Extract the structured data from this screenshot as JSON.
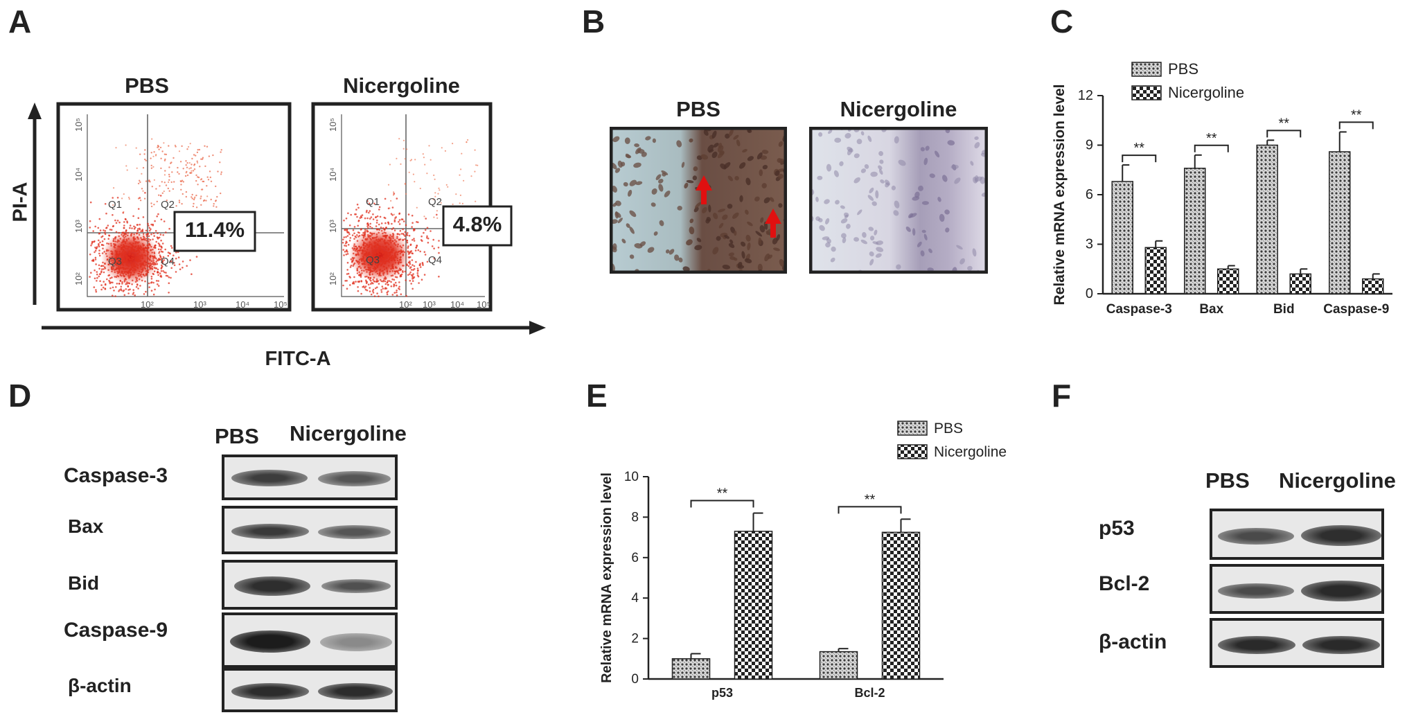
{
  "panels": {
    "A": {
      "letter": "A",
      "y_axis_label": "PI-A",
      "x_axis_label": "FITC-A",
      "plots": [
        {
          "title": "PBS",
          "percent": "11.4%",
          "quadrants": [
            "Q1",
            "Q2",
            "Q3",
            "Q4"
          ],
          "decades": [
            "10²",
            "10³",
            "10⁴",
            "10⁵"
          ]
        },
        {
          "title": "Nicergoline",
          "percent": "4.8%",
          "quadrants": [
            "Q1",
            "Q2",
            "Q3",
            "Q4"
          ],
          "decades": [
            "10²",
            "10³",
            "10⁴",
            "10⁵"
          ]
        }
      ]
    },
    "B": {
      "letter": "B",
      "images": [
        {
          "title": "PBS"
        },
        {
          "title": "Nicergoline"
        }
      ]
    },
    "D": {
      "letter": "D",
      "col_headers": [
        "PBS",
        "Nicergoline"
      ],
      "rows": [
        "Caspase-3",
        "Bax",
        "Bid",
        "Caspase-9",
        "β-actin"
      ]
    },
    "F": {
      "letter": "F",
      "col_headers": [
        "PBS",
        "Nicergoline"
      ],
      "rows": [
        "p53",
        "Bcl-2",
        "β-actin"
      ]
    }
  },
  "chart_data": [
    {
      "panel": "C",
      "type": "bar",
      "letter": "C",
      "ylabel": "Relative mRNA expression level",
      "xlabel": "",
      "ylim": [
        0,
        12
      ],
      "yticks": [
        0,
        3,
        6,
        9,
        12
      ],
      "categories": [
        "Caspase-3",
        "Bax",
        "Bid",
        "Caspase-9"
      ],
      "series": [
        {
          "name": "PBS",
          "values": [
            6.8,
            7.6,
            9.0,
            8.6
          ],
          "errors": [
            1.0,
            0.8,
            0.3,
            1.2
          ],
          "pattern": "dots"
        },
        {
          "name": "Nicergoline",
          "values": [
            2.8,
            1.5,
            1.2,
            0.9
          ],
          "errors": [
            0.4,
            0.2,
            0.3,
            0.3
          ],
          "pattern": "checker"
        }
      ],
      "significance": [
        "**",
        "**",
        "**",
        "**"
      ],
      "legend": "top"
    },
    {
      "panel": "E",
      "type": "bar",
      "letter": "E",
      "ylabel": "Relative mRNA expression level",
      "xlabel": "",
      "ylim": [
        0,
        10
      ],
      "yticks": [
        0,
        2,
        4,
        6,
        8,
        10
      ],
      "categories": [
        "p53",
        "Bcl-2"
      ],
      "series": [
        {
          "name": "PBS",
          "values": [
            1.0,
            1.35
          ],
          "errors": [
            0.25,
            0.15
          ],
          "pattern": "dots"
        },
        {
          "name": "Nicergoline",
          "values": [
            7.3,
            7.25
          ],
          "errors": [
            0.9,
            0.65
          ],
          "pattern": "checker"
        }
      ],
      "significance": [
        "**",
        "**"
      ],
      "legend": "top"
    }
  ]
}
